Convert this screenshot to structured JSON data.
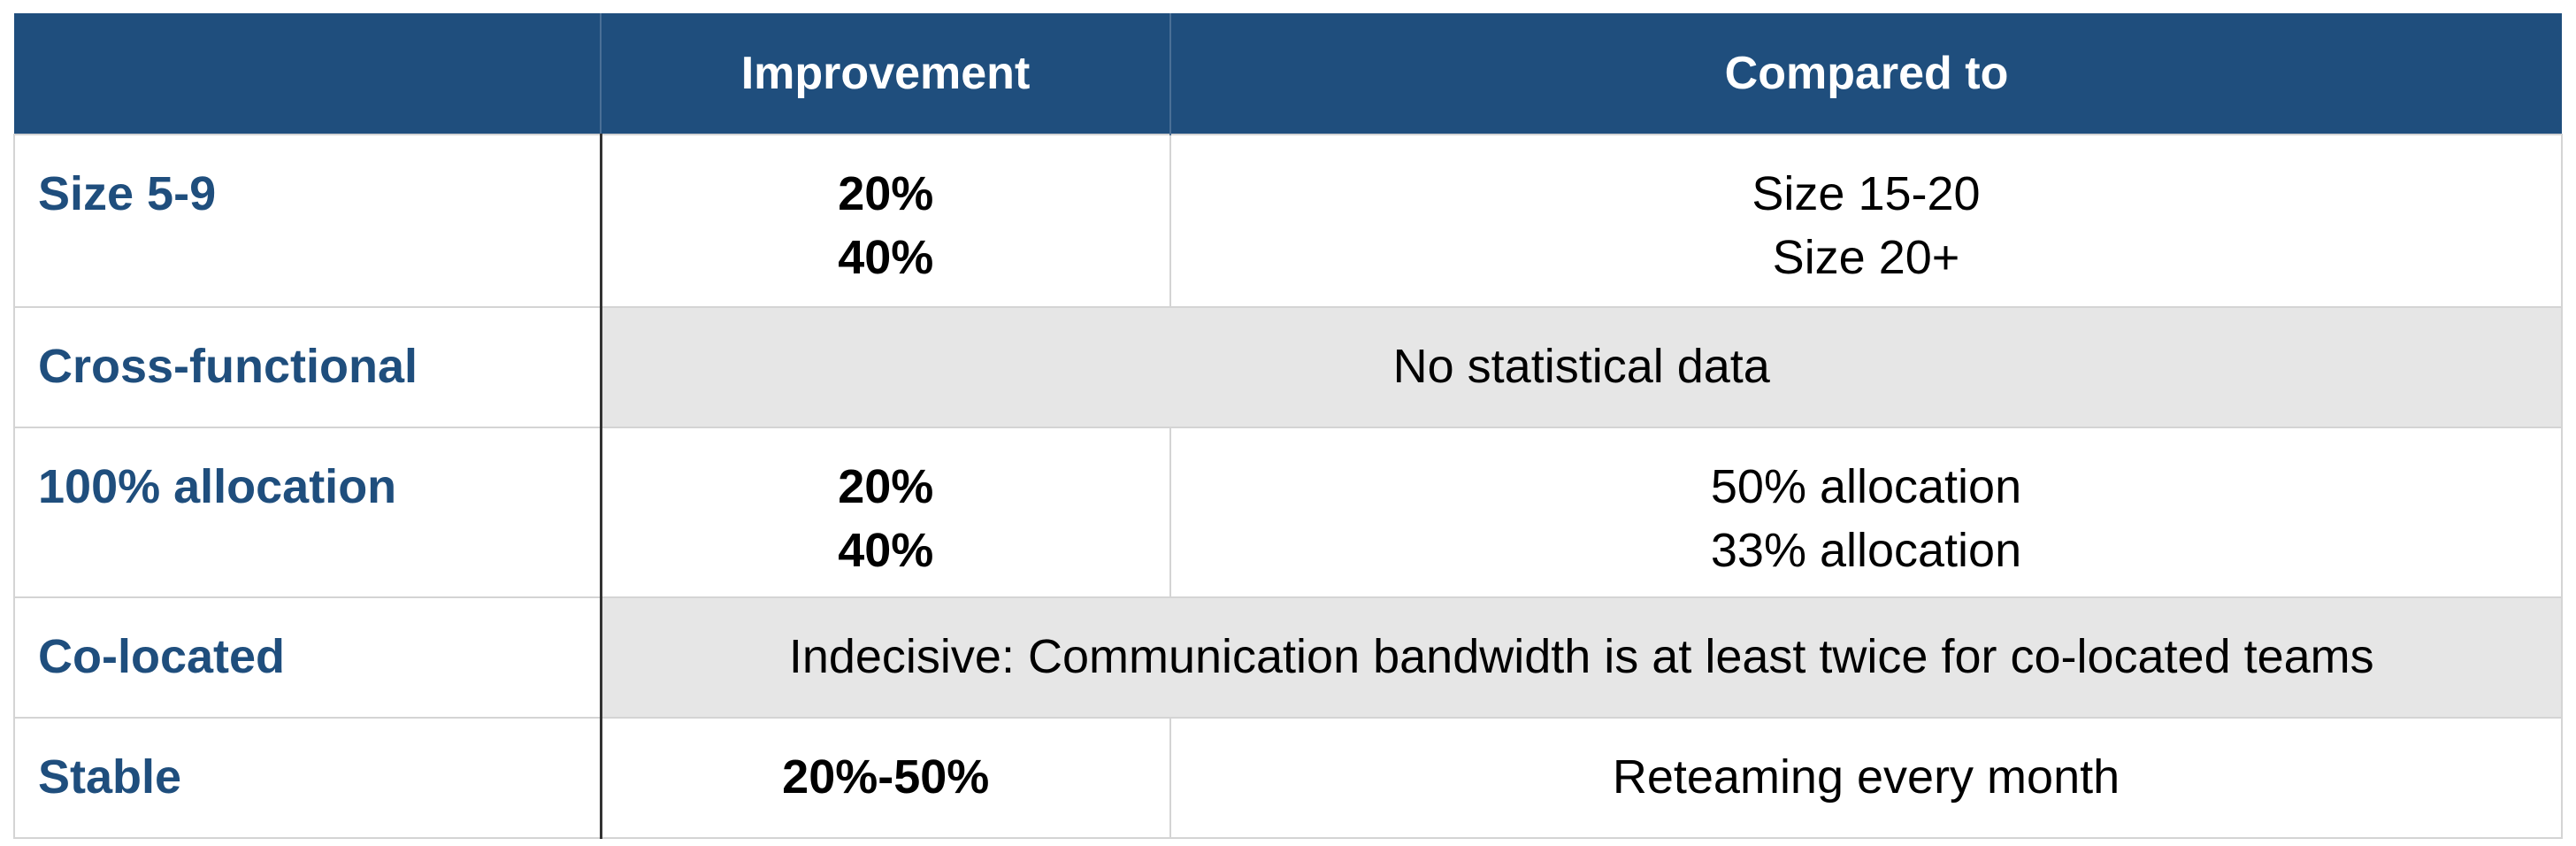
{
  "table": {
    "header": [
      "Improvement",
      "Compared to"
    ],
    "rows": [
      {
        "label": "Size 5-9",
        "improvement": [
          "20%",
          "40%"
        ],
        "compared": [
          "Size 15-20",
          "Size 20+"
        ]
      },
      {
        "label": "Cross-functional",
        "note": "No statistical data"
      },
      {
        "label": "100% allocation",
        "improvement": [
          "20%",
          "40%"
        ],
        "compared": [
          "50% allocation",
          "33% allocation"
        ]
      },
      {
        "label": "Co-located",
        "note": "Indecisive: Communication bandwidth is at least twice for co-located teams"
      },
      {
        "label": "Stable",
        "improvement": [
          "20%-50%"
        ],
        "compared": [
          "Reteaming every month"
        ]
      }
    ]
  }
}
